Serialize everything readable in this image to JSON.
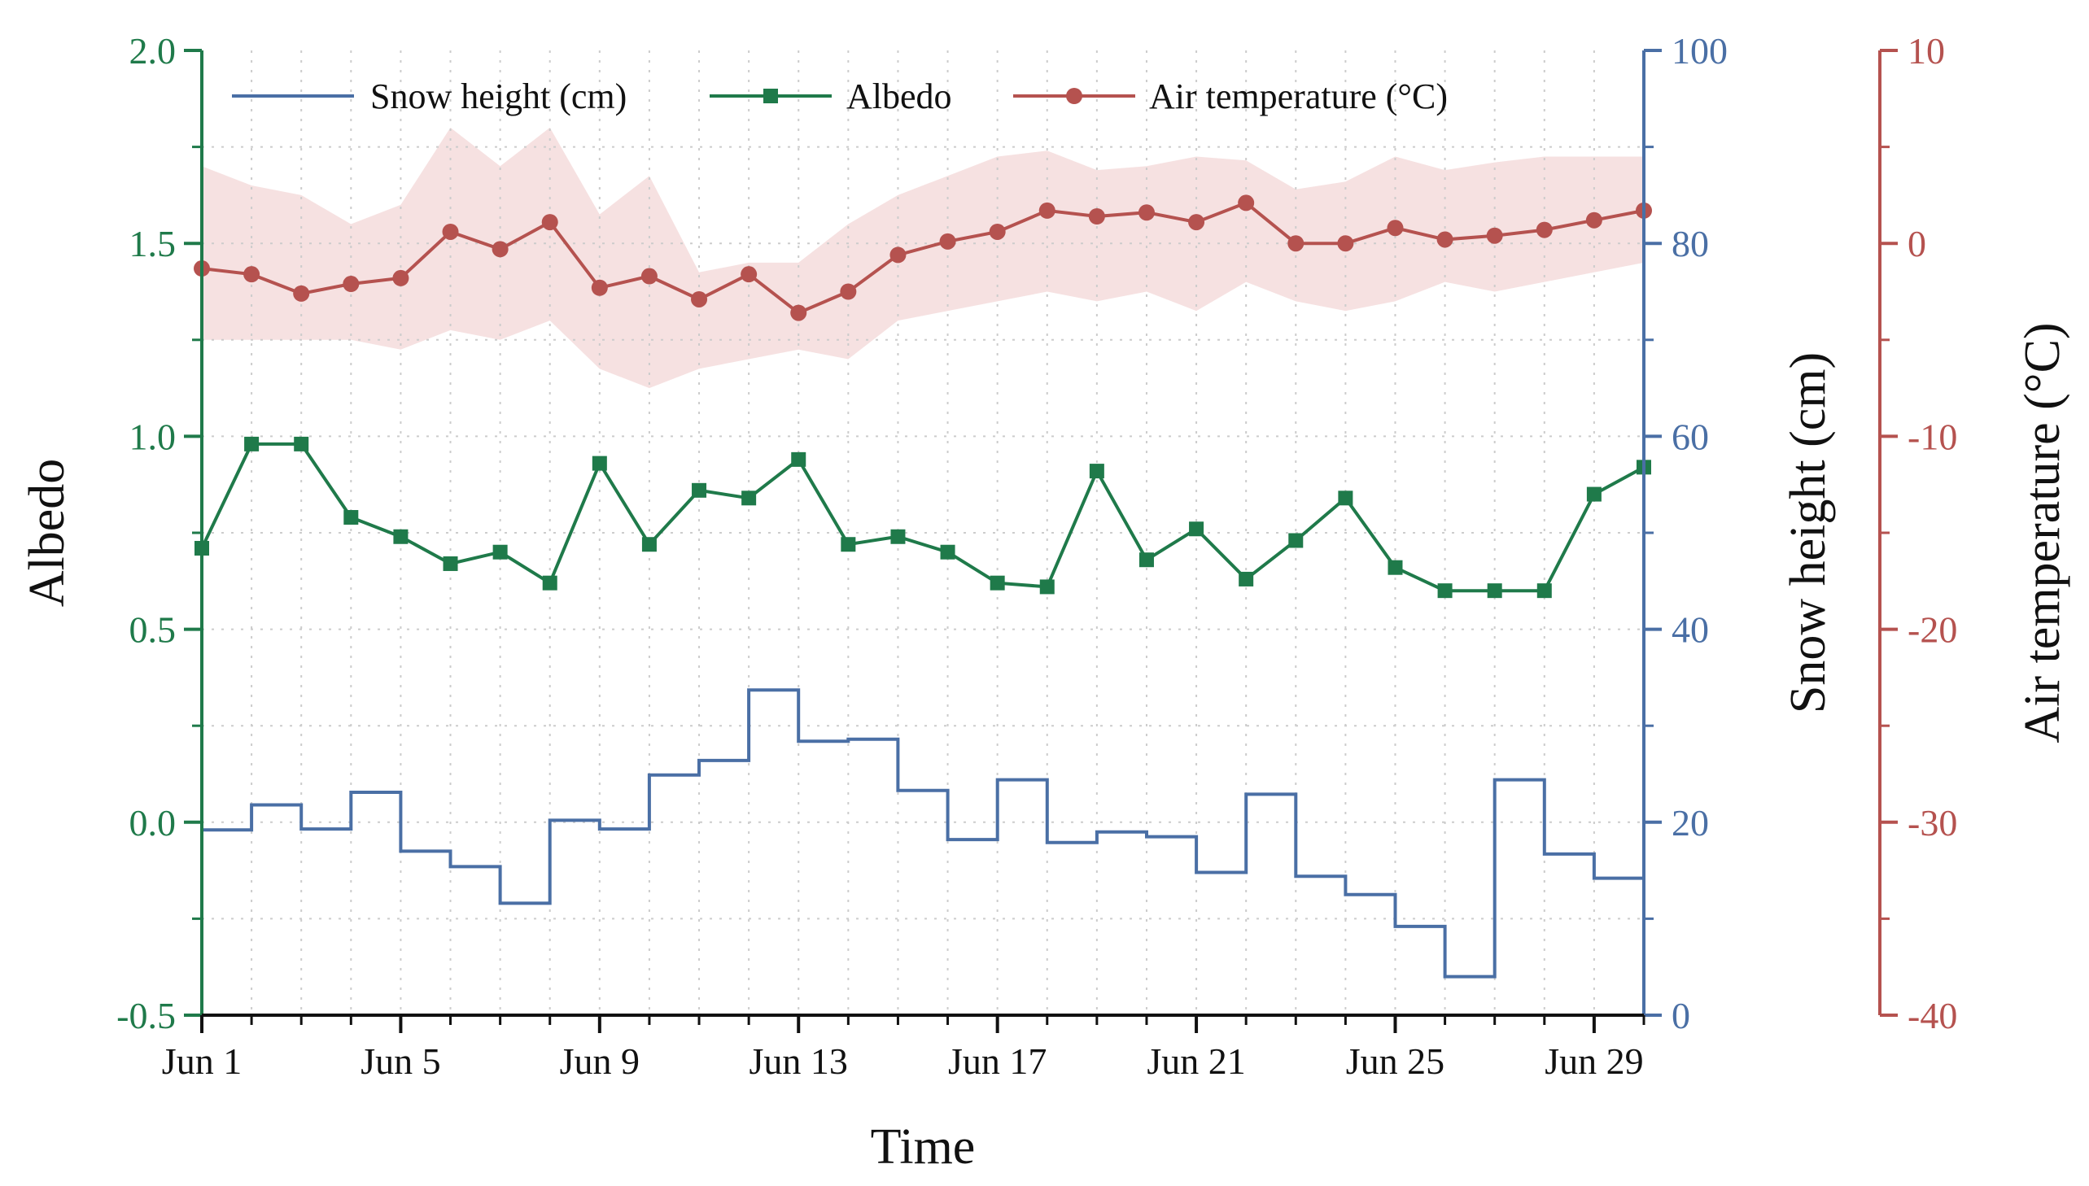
{
  "chart_data": {
    "type": "line",
    "xlabel": "Time",
    "x_ticks": [
      {
        "day": 1,
        "label": "Jun 1"
      },
      {
        "day": 5,
        "label": "Jun 5"
      },
      {
        "day": 9,
        "label": "Jun 9"
      },
      {
        "day": 13,
        "label": "Jun 13"
      },
      {
        "day": 17,
        "label": "Jun 17"
      },
      {
        "day": 21,
        "label": "Jun 21"
      },
      {
        "day": 25,
        "label": "Jun 25"
      },
      {
        "day": 29,
        "label": "Jun 29"
      }
    ],
    "xlim": [
      1,
      30
    ],
    "days": [
      1,
      2,
      3,
      4,
      5,
      6,
      7,
      8,
      9,
      10,
      11,
      12,
      13,
      14,
      15,
      16,
      17,
      18,
      19,
      20,
      21,
      22,
      23,
      24,
      25,
      26,
      27,
      28,
      29,
      30
    ],
    "axes": {
      "albedo": {
        "label": "Albedo",
        "ylim": [
          -0.5,
          2.0
        ],
        "ticks": [
          {
            "value": -0.5,
            "label": "-0.5"
          },
          {
            "value": 0.0,
            "label": "0.0"
          },
          {
            "value": 0.5,
            "label": "0.5"
          },
          {
            "value": 1.0,
            "label": "1.0"
          },
          {
            "value": 1.5,
            "label": "1.5"
          },
          {
            "value": 2.0,
            "label": "2.0"
          }
        ],
        "color": "#1f7a4a"
      },
      "snow": {
        "label": "Snow height (cm)",
        "ylim": [
          0,
          100
        ],
        "ticks": [
          {
            "value": 0,
            "label": "0"
          },
          {
            "value": 20,
            "label": "20"
          },
          {
            "value": 40,
            "label": "40"
          },
          {
            "value": 60,
            "label": "60"
          },
          {
            "value": 80,
            "label": "80"
          },
          {
            "value": 100,
            "label": "100"
          }
        ],
        "color": "#4a6fa5"
      },
      "temperature": {
        "label": "Air temperature (°C)",
        "ylim": [
          -40,
          10
        ],
        "ticks": [
          {
            "value": -40,
            "label": "-40"
          },
          {
            "value": -30,
            "label": "-30"
          },
          {
            "value": -20,
            "label": "-20"
          },
          {
            "value": -10,
            "label": "-10"
          },
          {
            "value": 0,
            "label": "0"
          },
          {
            "value": 10,
            "label": "10"
          }
        ],
        "color": "#b5524f"
      }
    },
    "series": [
      {
        "name": "Snow height (cm)",
        "axis": "snow",
        "style": "step",
        "color": "#4a6fa5",
        "values": [
          19.2,
          21.8,
          19.3,
          23.1,
          17.0,
          15.4,
          11.6,
          20.2,
          19.3,
          24.9,
          26.4,
          33.7,
          28.4,
          28.6,
          23.3,
          18.2,
          24.4,
          17.9,
          19.0,
          18.5,
          14.8,
          22.9,
          14.4,
          12.5,
          9.2,
          4.0,
          24.4,
          16.7,
          14.2,
          14.2
        ]
      },
      {
        "name": "Albedo",
        "axis": "albedo",
        "style": "line-square",
        "color": "#1f7a4a",
        "values": [
          0.71,
          0.98,
          0.98,
          0.79,
          0.74,
          0.67,
          0.7,
          0.62,
          0.93,
          0.72,
          0.86,
          0.84,
          0.94,
          0.72,
          0.74,
          0.7,
          0.62,
          0.61,
          0.91,
          0.68,
          0.76,
          0.63,
          0.73,
          0.84,
          0.66,
          0.6,
          0.6,
          0.6,
          0.85,
          0.92
        ]
      },
      {
        "name": "Air temperature (°C)",
        "axis": "temperature",
        "style": "line-circle",
        "color": "#b5524f",
        "band_color": "#f5dcdc",
        "values": [
          -1.3,
          -1.6,
          -2.6,
          -2.1,
          -1.8,
          0.6,
          -0.3,
          1.1,
          -2.3,
          -1.7,
          -2.9,
          -1.6,
          -3.6,
          -2.5,
          -0.6,
          0.1,
          0.6,
          1.7,
          1.4,
          1.6,
          1.1,
          2.1,
          0.0,
          0.0,
          0.8,
          0.2,
          0.4,
          0.7,
          1.2,
          1.7
        ],
        "band_upper": [
          4.0,
          3.0,
          2.5,
          1.0,
          2.0,
          6.0,
          4.0,
          6.0,
          1.5,
          3.5,
          -1.5,
          -1.0,
          -1.0,
          1.0,
          2.5,
          3.5,
          4.5,
          4.8,
          3.8,
          4.0,
          4.5,
          4.3,
          2.8,
          3.2,
          4.5,
          3.8,
          4.2,
          4.5,
          4.5,
          4.5
        ],
        "band_lower": [
          -5.0,
          -5.0,
          -5.0,
          -5.0,
          -5.5,
          -4.5,
          -5.0,
          -4.0,
          -6.5,
          -7.5,
          -6.5,
          -6.0,
          -5.5,
          -6.0,
          -4.0,
          -3.5,
          -3.0,
          -2.5,
          -3.0,
          -2.5,
          -3.5,
          -2.0,
          -3.0,
          -3.5,
          -3.0,
          -2.0,
          -2.5,
          -2.0,
          -1.5,
          -1.0
        ]
      }
    ],
    "legend": {
      "placement": "top",
      "items": [
        {
          "label": "Snow height (cm)",
          "series": 0
        },
        {
          "label": "Albedo",
          "series": 1
        },
        {
          "label": "Air temperature (°C)",
          "series": 2
        }
      ]
    },
    "grid": true
  }
}
